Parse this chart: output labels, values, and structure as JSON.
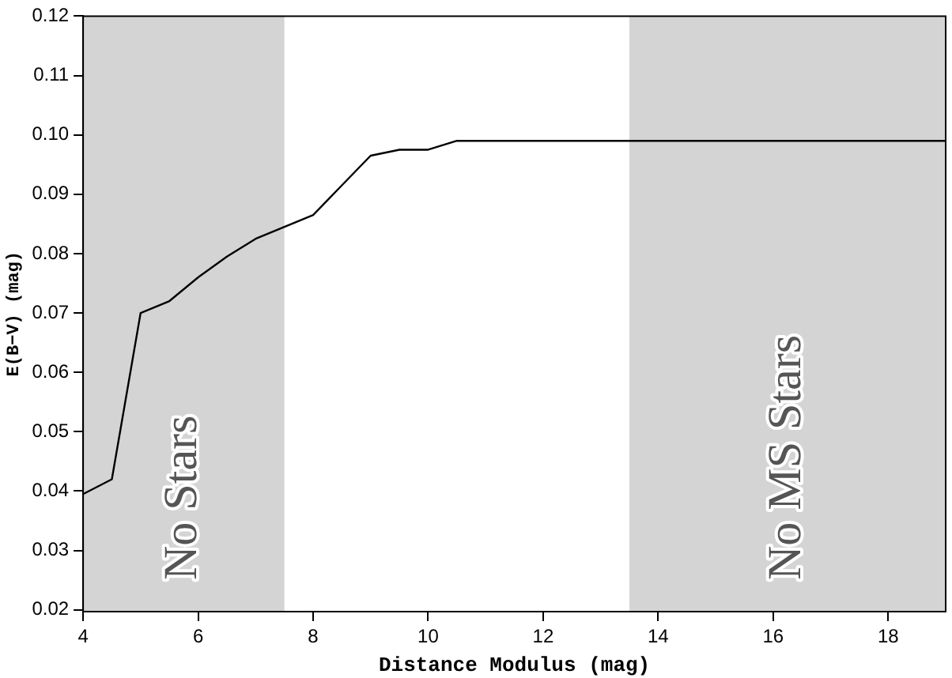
{
  "chart_data": {
    "type": "line",
    "xlabel": "Distance Modulus (mag)",
    "ylabel": "E(B−V) (mag)",
    "x": [
      4,
      4.5,
      5,
      5.5,
      6,
      6.5,
      7,
      7.5,
      8,
      8.5,
      9,
      9.5,
      10,
      10.5,
      19
    ],
    "series": [
      {
        "color": "#000000",
        "values": [
          0.0395,
          0.042,
          0.07,
          0.072,
          0.076,
          0.0795,
          0.0825,
          0.0845,
          0.0865,
          0.0915,
          0.0965,
          0.0975,
          0.0975,
          0.099,
          0.099
        ]
      }
    ],
    "xlim": [
      4,
      19
    ],
    "xticks": [
      4,
      6,
      8,
      10,
      12,
      14,
      16,
      18
    ],
    "ylim": [
      0.0197,
      0.12
    ],
    "yticks": [
      {
        "value": 0.02,
        "label": "0.02"
      },
      {
        "value": 0.03,
        "label": "0.03"
      },
      {
        "value": 0.04,
        "label": "0.04"
      },
      {
        "value": 0.05,
        "label": "0.05"
      },
      {
        "value": 0.06,
        "label": "0.06"
      },
      {
        "value": 0.07,
        "label": "0.07"
      },
      {
        "value": 0.08,
        "label": "0.08"
      },
      {
        "value": 0.09,
        "label": "0.09"
      },
      {
        "value": 0.1,
        "label": "0.10"
      },
      {
        "value": 0.11,
        "label": "0.11"
      },
      {
        "value": 0.12,
        "label": "0.12"
      }
    ],
    "bands": [
      {
        "axis": "x",
        "from": 4,
        "to": 7.5,
        "label": "No Stars",
        "color": "#d4d4d4"
      },
      {
        "axis": "x",
        "from": 13.5,
        "to": 19,
        "label": "No MS Stars",
        "color": "#d4d4d4"
      }
    ],
    "grid": false,
    "legend": false,
    "marker": "none",
    "line_style": "solid"
  }
}
